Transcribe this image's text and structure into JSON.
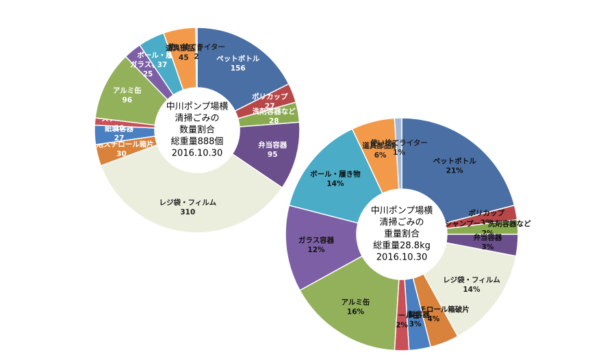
{
  "chart_data": [
    {
      "type": "donut",
      "center_text": [
        "中川ポンプ場横",
        "清掃ごみの",
        "数量割合",
        "総重量888個",
        "2016.10.30"
      ],
      "categories": [
        "ペットボトル",
        "ポリカップ",
        "洗剤容器など",
        "弁当容器",
        "レジ袋・フィルム",
        "発泡スチロール箱片",
        "紙製容器",
        "スチール缶",
        "アルミ缶",
        "ガラス容器",
        "ボール・履き物",
        "道具部品類",
        "使い捨てライター"
      ],
      "values": [
        156,
        27,
        28,
        95,
        310,
        30,
        27,
        10,
        96,
        25,
        37,
        45,
        2
      ],
      "colors": [
        "#4a6fa5",
        "#b8474a",
        "#8aaa4f",
        "#6b4f8c",
        "#eceedd",
        "#d9823b",
        "#4a7fc1",
        "#c95057",
        "#93b15a",
        "#7d5fa6",
        "#4aacc6",
        "#f39a4a",
        "#a3b8d8"
      ]
    },
    {
      "type": "donut",
      "center_text": [
        "中川ポンプ場横",
        "清掃ごみの",
        "重量割合",
        "総重量28.8kg",
        "2016.10.30"
      ],
      "categories": [
        "ペットボトル",
        "ポリカップ",
        "シャンプー・洗剤容器など",
        "弁当容器",
        "レジ袋・フィルム",
        "発泡スチロール箱破片",
        "紙製容器",
        "スチール缶",
        "アルミ缶",
        "ガラス容器",
        "ボール・履き物",
        "道具部品類",
        "使い捨てライター"
      ],
      "values": [
        21,
        2,
        2,
        3,
        14,
        4,
        3,
        2,
        16,
        12,
        14,
        6,
        1
      ],
      "value_labels": [
        "21%",
        "2%",
        "2%",
        "3%",
        "14%",
        "4%",
        "3%",
        "2%",
        "16%",
        "12%",
        "14%",
        "6%",
        "1%"
      ],
      "colors": [
        "#4a6fa5",
        "#b8474a",
        "#8aaa4f",
        "#6b4f8c",
        "#eceedd",
        "#d9823b",
        "#4a7fc1",
        "#c95057",
        "#93b15a",
        "#7d5fa6",
        "#4aacc6",
        "#f39a4a",
        "#a3b8d8"
      ]
    }
  ]
}
